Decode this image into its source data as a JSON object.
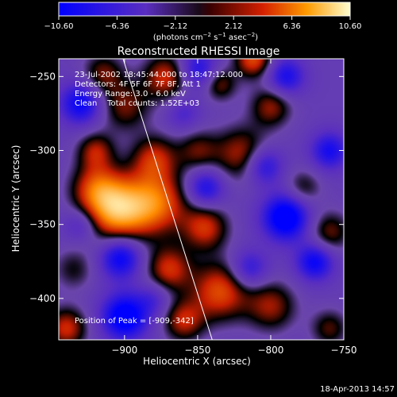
{
  "chart_data": {
    "type": "heatmap",
    "title": "Reconstructed RHESSI Image",
    "xlabel": "Heliocentric X (arcsec)",
    "ylabel": "Heliocentric Y (arcsec)",
    "xlim": [
      -945,
      -750
    ],
    "ylim": [
      -428,
      -238
    ],
    "x_ticks": [
      -900,
      -850,
      -800,
      -750
    ],
    "y_ticks": [
      -400,
      -350,
      -300,
      -250
    ],
    "x_tick_labels": [
      "−900",
      "−850",
      "−800",
      "−750"
    ],
    "y_tick_labels": [
      "−400",
      "−350",
      "−300",
      "−250"
    ],
    "colorbar": {
      "range": [
        -10.6,
        10.6
      ],
      "ticks": [
        -10.6,
        -6.36,
        -2.12,
        2.12,
        6.36,
        10.6
      ],
      "tick_labels": [
        "−10.60",
        "−6.36",
        "−2.12",
        "2.12",
        "6.36",
        "10.60"
      ],
      "unit_label": [
        "(photons cm",
        "−2",
        " s",
        "−1",
        " asec",
        "−2",
        ")"
      ]
    },
    "annotations": [
      "23-Jul-2002 18:45:44.000 to 18:47:12.000",
      "Detectors: 4F 5F 6F 7F 8F, Att 1",
      "Energy Range: 3.0 - 6.0 keV",
      "Clean    Total counts: 1.52E+03",
      "Position of Peak = [-909,-342]"
    ],
    "limb_line": [
      [
        -901,
        -238
      ],
      [
        -840,
        -428
      ]
    ],
    "peak": [
      -909,
      -342
    ],
    "blobs": [
      {
        "x": -905,
        "y": -340,
        "v": 10.0,
        "s": 15
      },
      {
        "x": -878,
        "y": -335,
        "v": 7.5,
        "s": 15
      },
      {
        "x": -920,
        "y": -325,
        "v": 5.5,
        "s": 12
      },
      {
        "x": -880,
        "y": -305,
        "v": 5.5,
        "s": 11
      },
      {
        "x": -920,
        "y": -300,
        "v": 5.0,
        "s": 9
      },
      {
        "x": -900,
        "y": -270,
        "v": 4.5,
        "s": 12
      },
      {
        "x": -872,
        "y": -250,
        "v": 6.0,
        "s": 11
      },
      {
        "x": -915,
        "y": -248,
        "v": 4.5,
        "s": 10
      },
      {
        "x": -850,
        "y": -300,
        "v": 4.0,
        "s": 10
      },
      {
        "x": -820,
        "y": -302,
        "v": 5.5,
        "s": 13
      },
      {
        "x": -800,
        "y": -270,
        "v": 5.0,
        "s": 10
      },
      {
        "x": -835,
        "y": -255,
        "v": 4.5,
        "s": 8
      },
      {
        "x": -812,
        "y": -238,
        "v": 7.0,
        "s": 9
      },
      {
        "x": -845,
        "y": -352,
        "v": 6.0,
        "s": 11
      },
      {
        "x": -870,
        "y": -380,
        "v": 6.0,
        "s": 11
      },
      {
        "x": -835,
        "y": -395,
        "v": 7.0,
        "s": 14
      },
      {
        "x": -800,
        "y": -405,
        "v": 5.0,
        "s": 12
      },
      {
        "x": -860,
        "y": -415,
        "v": 5.5,
        "s": 10
      },
      {
        "x": -760,
        "y": -355,
        "v": 4.5,
        "s": 10
      },
      {
        "x": -778,
        "y": -325,
        "v": 3.5,
        "s": 9
      },
      {
        "x": -760,
        "y": -420,
        "v": 4.0,
        "s": 9
      },
      {
        "x": -940,
        "y": -420,
        "v": 6.0,
        "s": 10
      },
      {
        "x": -935,
        "y": -380,
        "v": 3.0,
        "s": 10
      },
      {
        "x": -903,
        "y": -372,
        "v": -7.5,
        "s": 10
      },
      {
        "x": -900,
        "y": -412,
        "v": -9.0,
        "s": 11
      },
      {
        "x": -930,
        "y": -268,
        "v": -7.0,
        "s": 10
      },
      {
        "x": -790,
        "y": -345,
        "v": -9.5,
        "s": 11
      },
      {
        "x": -770,
        "y": -375,
        "v": -7.0,
        "s": 9
      },
      {
        "x": -805,
        "y": -310,
        "v": -6.0,
        "s": 9
      },
      {
        "x": -790,
        "y": -250,
        "v": -6.0,
        "s": 9
      },
      {
        "x": -850,
        "y": -245,
        "v": -5.5,
        "s": 9
      },
      {
        "x": -845,
        "y": -325,
        "v": -6.0,
        "s": 9
      },
      {
        "x": -815,
        "y": -380,
        "v": -5.0,
        "s": 9
      },
      {
        "x": -760,
        "y": -300,
        "v": -6.0,
        "s": 9
      },
      {
        "x": -930,
        "y": -350,
        "v": -3.5,
        "s": 8
      },
      {
        "x": -860,
        "y": -275,
        "v": -3.0,
        "s": 8
      },
      {
        "x": -880,
        "y": -400,
        "v": -3.0,
        "s": 8
      }
    ],
    "grid": false,
    "colormap": [
      "#0000ff",
      "#5a2ec0",
      "#6a45aa",
      "#000000",
      "#c81e00",
      "#ff8c00",
      "#ffffd0"
    ]
  },
  "footer": {
    "timestamp": "18-Apr-2013 14:57"
  }
}
